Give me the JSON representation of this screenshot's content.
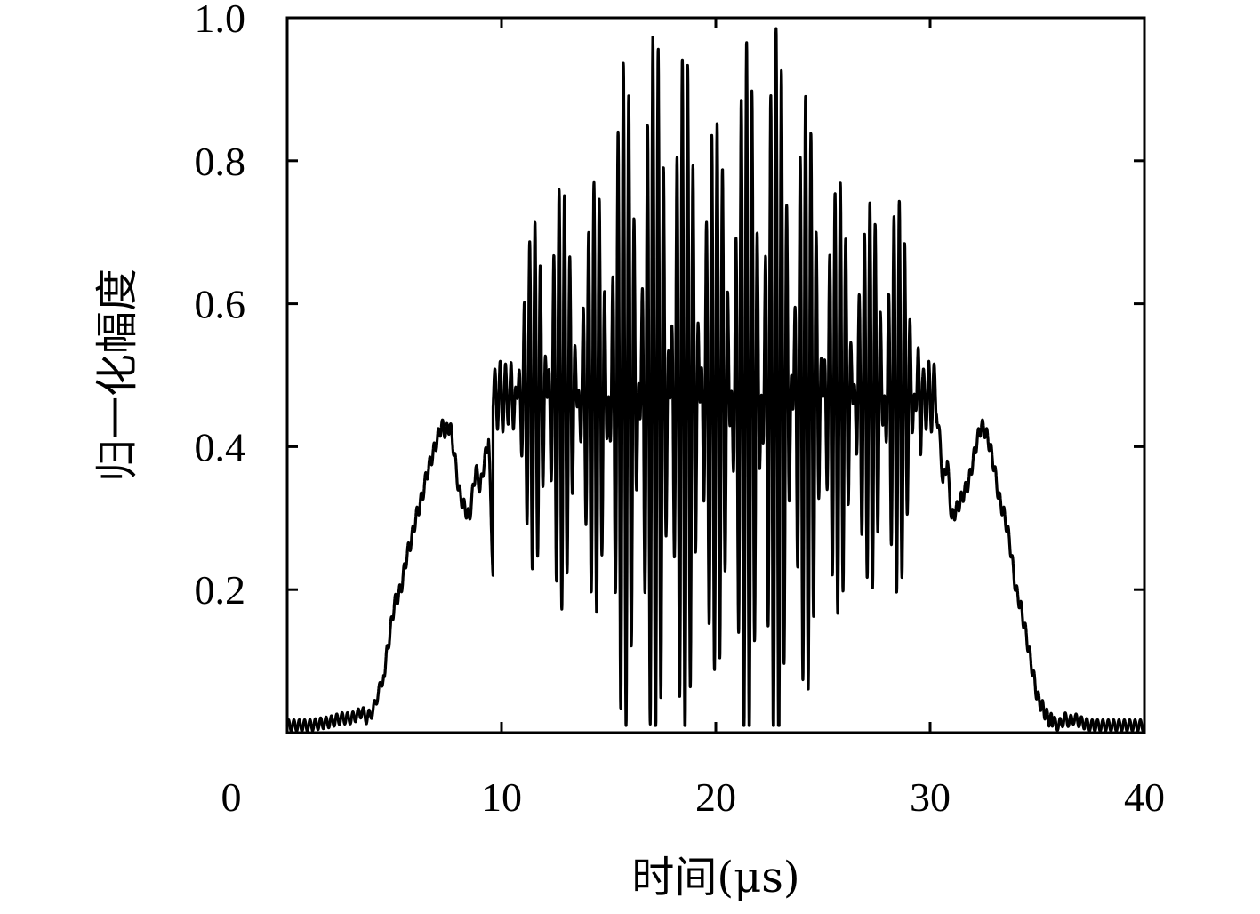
{
  "chart_data": {
    "type": "line",
    "title": "",
    "xlabel": "时间(μs)",
    "ylabel": "归一化幅度",
    "xlim": [
      0,
      40
    ],
    "ylim": [
      0,
      1.0
    ],
    "x_ticks": [
      0,
      10,
      20,
      30,
      40
    ],
    "y_ticks": [
      0.2,
      0.4,
      0.6,
      0.8,
      1.0
    ],
    "x_tick_labels": [
      "0",
      "10",
      "20",
      "30",
      "40"
    ],
    "y_tick_labels": [
      "0.2",
      "0.4",
      "0.6",
      "0.8",
      "1.0"
    ],
    "grid": false,
    "legend": "none",
    "line_color": "#000000",
    "series": [
      {
        "x": [
          0.0,
          1.0,
          2.0,
          2.5,
          3.0,
          3.3,
          3.5,
          3.7,
          4.0,
          4.5,
          5.0,
          5.3,
          5.6,
          5.8,
          6.0,
          6.3,
          6.5,
          6.8,
          7.0,
          7.2,
          7.4,
          7.6,
          7.8,
          8.0,
          8.2,
          8.5,
          8.8,
          9.0,
          9.2,
          9.4,
          9.6,
          9.8,
          10.0,
          10.5,
          11.0,
          11.5,
          12.0,
          12.5,
          13.0,
          13.5,
          14.0,
          14.5,
          15.0,
          15.5,
          16.0,
          16.5,
          17.0,
          17.5,
          18.0,
          18.5,
          19.0,
          19.5,
          20.0,
          20.5,
          21.0,
          21.5,
          22.0,
          22.5,
          23.0,
          23.5,
          24.0,
          24.5,
          25.0,
          25.5,
          26.0,
          26.5,
          27.0,
          27.5,
          28.0,
          28.5,
          29.0,
          29.5,
          30.0,
          30.2,
          30.4,
          30.6,
          30.8,
          31.0,
          31.2,
          31.5,
          31.8,
          32.0,
          32.2,
          32.4,
          32.6,
          32.8,
          33.0,
          33.2,
          33.5,
          33.7,
          34.0,
          34.2,
          34.4,
          34.7,
          35.0,
          35.5,
          36.0,
          36.3,
          36.5,
          36.7,
          37.0,
          37.5,
          38.0,
          39.0,
          40.0
        ],
        "y": [
          0.01,
          0.01,
          0.015,
          0.02,
          0.02,
          0.025,
          0.03,
          0.02,
          0.03,
          0.08,
          0.18,
          0.2,
          0.25,
          0.27,
          0.3,
          0.33,
          0.36,
          0.39,
          0.41,
          0.43,
          0.42,
          0.43,
          0.39,
          0.34,
          0.32,
          0.3,
          0.37,
          0.34,
          0.38,
          0.41,
          0.22,
          0.47,
          0.21,
          0.6,
          0.65,
          0.72,
          0.76,
          0.8,
          0.75,
          0.7,
          0.72,
          0.8,
          0.85,
          0.93,
          0.95,
          0.97,
          0.98,
          1.0,
          0.98,
          0.96,
          0.93,
          0.9,
          0.85,
          0.9,
          0.94,
          0.97,
          0.99,
          1.0,
          0.98,
          0.95,
          0.93,
          0.85,
          0.8,
          0.77,
          0.78,
          0.74,
          0.72,
          0.78,
          0.8,
          0.75,
          0.7,
          0.67,
          0.2,
          0.46,
          0.43,
          0.35,
          0.38,
          0.3,
          0.31,
          0.33,
          0.35,
          0.38,
          0.41,
          0.43,
          0.42,
          0.4,
          0.37,
          0.33,
          0.3,
          0.27,
          0.2,
          0.18,
          0.15,
          0.1,
          0.05,
          0.02,
          0.01,
          0.02,
          0.015,
          0.02,
          0.015,
          0.01,
          0.01,
          0.01,
          0.01
        ]
      }
    ]
  }
}
